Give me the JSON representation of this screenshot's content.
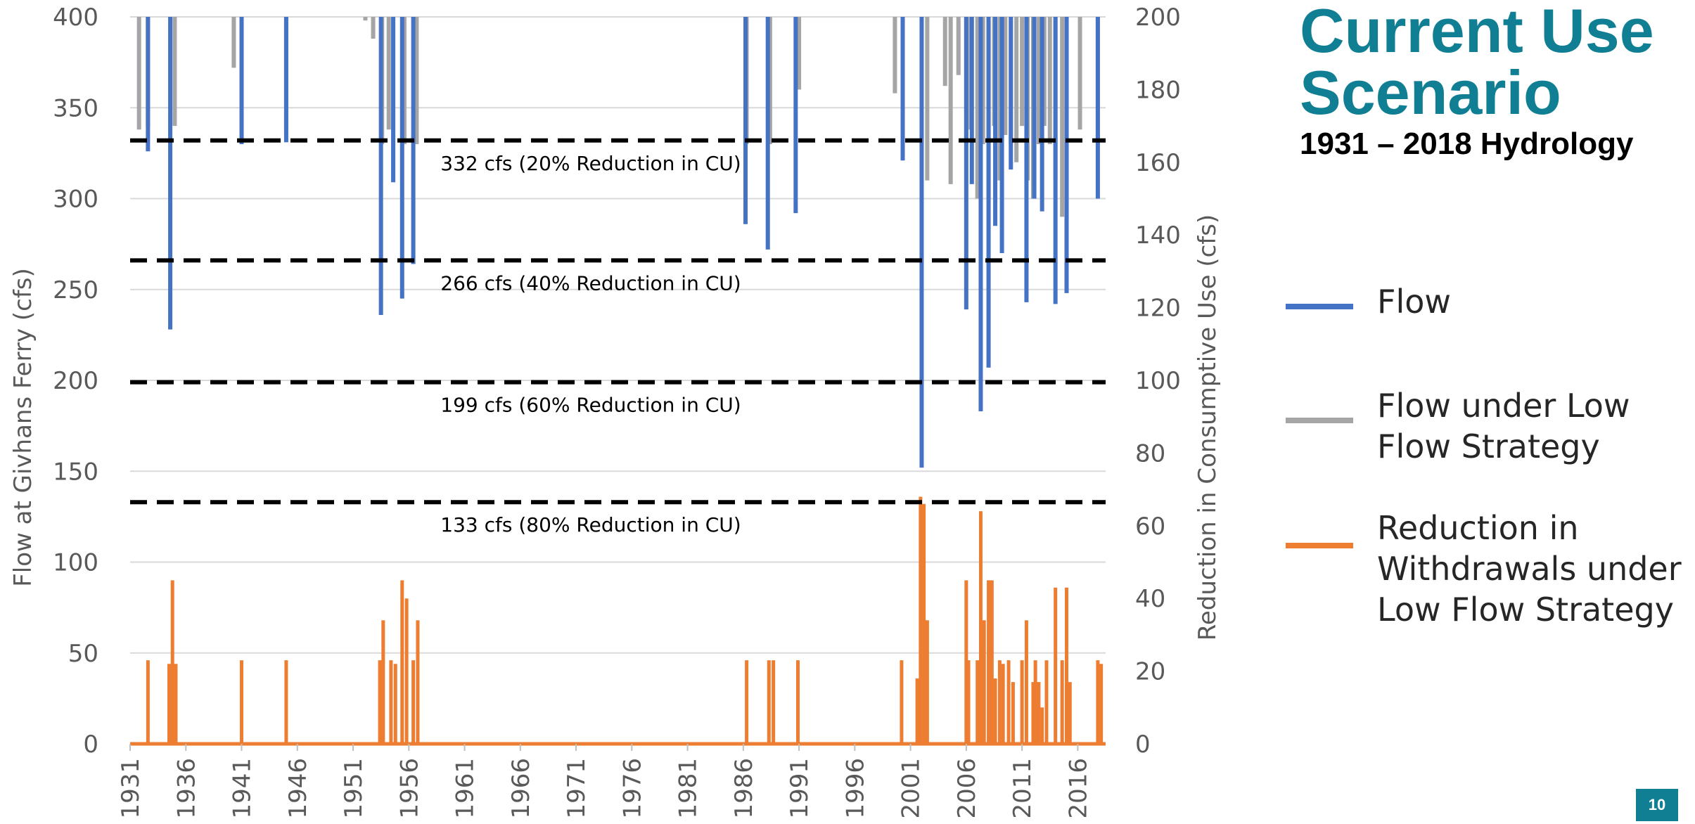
{
  "title": {
    "line1": "Current Use",
    "line2": "Scenario",
    "subtitle": "1931 – 2018 Hydrology"
  },
  "page_number": "10",
  "legend": [
    {
      "label": "Flow",
      "color": "#4472C4"
    },
    {
      "label": "Flow under Low Flow Strategy",
      "color": "#A5A5A5"
    },
    {
      "label": "Reduction in Withdrawals under Low Flow Strategy",
      "color": "#ED7D31"
    }
  ],
  "chart_data": {
    "type": "line",
    "xlabel": "",
    "ylabel": "Flow at Givhans Ferry (cfs)",
    "y2label": "Reduction in Consumptive Use (cfs)",
    "xlim": [
      1931,
      2018.5
    ],
    "ylim": [
      0,
      400
    ],
    "y2lim": [
      0,
      200
    ],
    "x_ticks": [
      1931,
      1936,
      1941,
      1946,
      1951,
      1956,
      1961,
      1966,
      1971,
      1976,
      1981,
      1986,
      1991,
      1996,
      2001,
      2006,
      2011,
      2016
    ],
    "y_ticks": [
      0,
      50,
      100,
      150,
      200,
      250,
      300,
      350,
      400
    ],
    "y2_ticks": [
      0,
      20,
      40,
      60,
      80,
      100,
      120,
      140,
      160,
      180,
      200
    ],
    "grid": true,
    "thresholds": [
      {
        "value": 332,
        "label": "332 cfs (20% Reduction in CU)"
      },
      {
        "value": 266,
        "label": "266 cfs (40% Reduction in CU)"
      },
      {
        "value": 199,
        "label": "199 cfs (60% Reduction in CU)"
      },
      {
        "value": 133,
        "label": "133 cfs (80% Reduction in CU)"
      }
    ],
    "series": [
      {
        "name": "Flow under Low Flow Strategy",
        "axis": "left",
        "color": "#A5A5A5",
        "events": [
          [
            1931.8,
            338
          ],
          [
            1932.6,
            340
          ],
          [
            1935.0,
            340
          ],
          [
            1940.3,
            372
          ],
          [
            1941.0,
            366
          ],
          [
            1945.0,
            336
          ],
          [
            1952.1,
            398
          ],
          [
            1952.8,
            388
          ],
          [
            1953.6,
            330
          ],
          [
            1954.2,
            338
          ],
          [
            1955.6,
            330
          ],
          [
            1956.7,
            330
          ],
          [
            1986.3,
            330
          ],
          [
            1988.4,
            330
          ],
          [
            1991.0,
            360
          ],
          [
            1999.6,
            358
          ],
          [
            2000.3,
            338
          ],
          [
            2002.5,
            310
          ],
          [
            2004.1,
            362
          ],
          [
            2004.6,
            308
          ],
          [
            2005.3,
            368
          ],
          [
            2006.0,
            330
          ],
          [
            2006.4,
            338
          ],
          [
            2007.0,
            300
          ],
          [
            2007.5,
            330
          ],
          [
            2008.0,
            300
          ],
          [
            2008.5,
            340
          ],
          [
            2009.0,
            310
          ],
          [
            2009.5,
            335
          ],
          [
            2010.0,
            330
          ],
          [
            2010.5,
            320
          ],
          [
            2011.0,
            340
          ],
          [
            2011.5,
            310
          ],
          [
            2012.0,
            300
          ],
          [
            2012.5,
            330
          ],
          [
            2013.0,
            340
          ],
          [
            2013.5,
            330
          ],
          [
            2014.0,
            310
          ],
          [
            2014.6,
            290
          ],
          [
            2015.0,
            300
          ],
          [
            2016.2,
            338
          ],
          [
            2017.8,
            330
          ]
        ]
      },
      {
        "name": "Flow",
        "axis": "left",
        "color": "#4472C4",
        "events": [
          [
            1932.6,
            326
          ],
          [
            1934.6,
            228
          ],
          [
            1941.0,
            330
          ],
          [
            1945.0,
            331
          ],
          [
            1953.5,
            236
          ],
          [
            1954.6,
            309
          ],
          [
            1955.4,
            245
          ],
          [
            1956.4,
            264
          ],
          [
            1986.2,
            286
          ],
          [
            1988.2,
            272
          ],
          [
            1990.7,
            292
          ],
          [
            2000.3,
            321
          ],
          [
            2002.0,
            152
          ],
          [
            2006.0,
            239
          ],
          [
            2006.5,
            308
          ],
          [
            2007.3,
            183
          ],
          [
            2008.0,
            207
          ],
          [
            2008.6,
            285
          ],
          [
            2009.2,
            270
          ],
          [
            2010.0,
            316
          ],
          [
            2011.4,
            243
          ],
          [
            2012.1,
            300
          ],
          [
            2012.8,
            293
          ],
          [
            2014.0,
            242
          ],
          [
            2015.0,
            248
          ],
          [
            2017.8,
            300
          ]
        ]
      },
      {
        "name": "Reduction in Withdrawals under Low Flow Strategy",
        "axis": "right",
        "color": "#ED7D31",
        "events": [
          [
            1932.6,
            23
          ],
          [
            1934.5,
            22
          ],
          [
            1934.8,
            45
          ],
          [
            1935.1,
            22
          ],
          [
            1941.0,
            23
          ],
          [
            1945.0,
            23
          ],
          [
            1953.4,
            23
          ],
          [
            1953.7,
            34
          ],
          [
            1954.4,
            23
          ],
          [
            1954.8,
            22
          ],
          [
            1955.4,
            45
          ],
          [
            1955.8,
            40
          ],
          [
            1956.4,
            23
          ],
          [
            1956.8,
            34
          ],
          [
            1986.3,
            23
          ],
          [
            1988.3,
            23
          ],
          [
            1988.7,
            23
          ],
          [
            1990.9,
            23
          ],
          [
            2000.2,
            23
          ],
          [
            2001.6,
            18
          ],
          [
            2001.9,
            68
          ],
          [
            2002.2,
            66
          ],
          [
            2002.5,
            34
          ],
          [
            2006.0,
            45
          ],
          [
            2006.2,
            23
          ],
          [
            2007.0,
            23
          ],
          [
            2007.3,
            64
          ],
          [
            2007.6,
            34
          ],
          [
            2008.0,
            45
          ],
          [
            2008.3,
            45
          ],
          [
            2008.6,
            18
          ],
          [
            2009.0,
            23
          ],
          [
            2009.3,
            22
          ],
          [
            2009.8,
            23
          ],
          [
            2010.2,
            17
          ],
          [
            2011.0,
            23
          ],
          [
            2011.4,
            34
          ],
          [
            2012.0,
            17
          ],
          [
            2012.2,
            23
          ],
          [
            2012.5,
            17
          ],
          [
            2012.8,
            10
          ],
          [
            2013.2,
            23
          ],
          [
            2014.0,
            43
          ],
          [
            2014.6,
            23
          ],
          [
            2015.0,
            43
          ],
          [
            2015.3,
            17
          ],
          [
            2017.8,
            23
          ],
          [
            2018.1,
            22
          ]
        ]
      }
    ]
  }
}
